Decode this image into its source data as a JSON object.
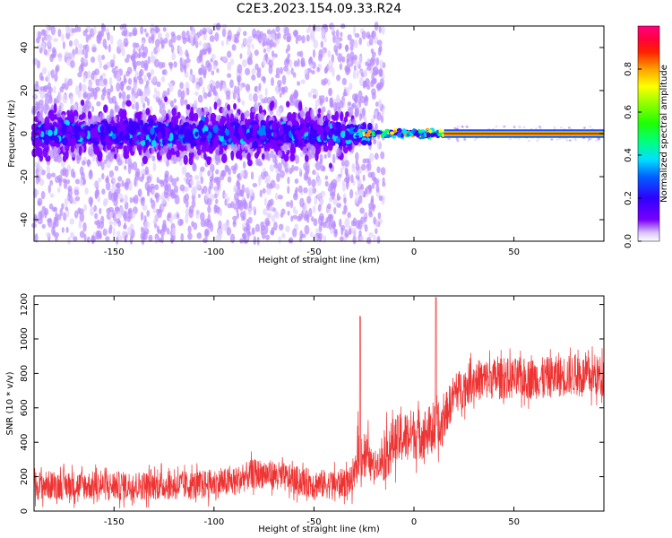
{
  "title": "C2E3.2023.154.09.33.R24",
  "colors": {
    "snr_line": "#ee3333",
    "spectrogram_low": "#7a00ff",
    "spectrogram_high": "#ff0000",
    "axes": "#000000"
  },
  "chart_data": [
    {
      "type": "heatmap",
      "name": "spectrogram",
      "xlabel": "Height of straight line (km)",
      "ylabel": "Frequency (Hz)",
      "xlim": [
        -190,
        95
      ],
      "ylim": [
        -50,
        50
      ],
      "xticks": [
        -150,
        -100,
        -50,
        0,
        50
      ],
      "yticks": [
        -40,
        -20,
        0,
        20,
        40
      ],
      "grid": false,
      "colormap": "rainbow",
      "description_values": {
        "noisy_region_x": [
          -190,
          -30
        ],
        "transition_x": [
          -30,
          15
        ],
        "carrier_line_x": [
          15,
          95
        ],
        "carrier_frequency_hz": 0,
        "scatter_halfwidth_hz_noisy": 50,
        "dense_band_halfwidth_hz": 8
      },
      "colorbar": {
        "label": "Normalized spectral amplitude",
        "range": [
          0,
          1
        ],
        "ticks": [
          "0.0",
          "0.2",
          "0.4",
          "0.6",
          "0.8"
        ],
        "tick_values": [
          0.0,
          0.2,
          0.4,
          0.6,
          0.8
        ]
      }
    },
    {
      "type": "line",
      "name": "snr",
      "xlabel": "Height of straight line (km)",
      "ylabel": "SNR (10 * v/v)",
      "xlim": [
        -190,
        95
      ],
      "ylim": [
        0,
        1250
      ],
      "xticks": [
        -150,
        -100,
        -50,
        0,
        50
      ],
      "yticks": [
        0,
        200,
        400,
        600,
        800,
        1000,
        1200
      ],
      "grid": false,
      "series": [
        {
          "x": [
            -190,
            -170,
            -150,
            -130,
            -110,
            -90,
            -80,
            -70,
            -60,
            -50,
            -40,
            -30,
            -28,
            -25,
            -20,
            -15,
            -10,
            -5,
            0,
            5,
            10,
            11,
            12,
            15,
            20,
            30,
            40,
            50,
            60,
            70,
            80,
            90,
            95
          ],
          "values": [
            150,
            150,
            145,
            150,
            150,
            170,
            220,
            210,
            180,
            160,
            155,
            175,
            350,
            330,
            260,
            320,
            400,
            430,
            450,
            450,
            480,
            1200,
            420,
            540,
            680,
            760,
            770,
            770,
            770,
            780,
            790,
            780,
            790
          ]
        }
      ],
      "notable_spikes": [
        {
          "x": -27,
          "y": 1130
        },
        {
          "x": 11,
          "y": 1240
        }
      ]
    }
  ]
}
